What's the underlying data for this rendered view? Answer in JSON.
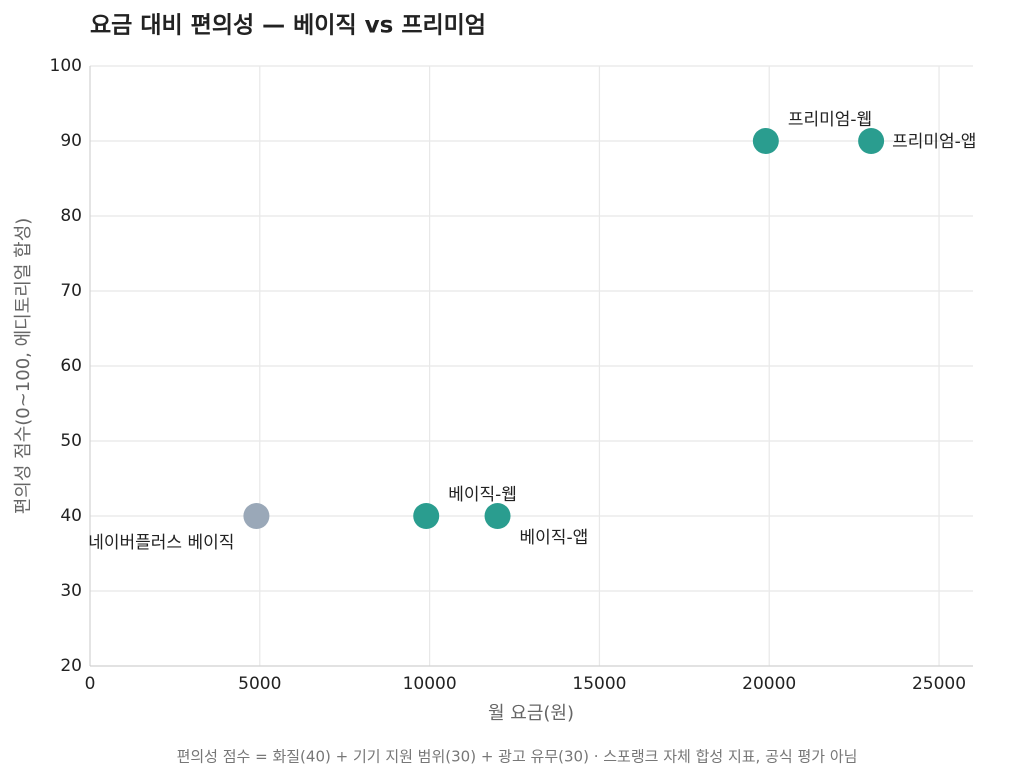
{
  "chart_data": {
    "type": "scatter",
    "title": "요금 대비 편의성 — 베이직 vs 프리미엄",
    "x_label": "월 요금(원)",
    "y_label": "편의성 점수(0~100, 에디토리얼 합성)",
    "footnote": "편의성 점수 = 화질(40) + 기기 지원 범위(30) + 광고 유무(30) · 스포랭크 자체 합성 지표, 공식 평가 아님",
    "point_labels": [
      "네이버플러스 베이직",
      "베이직-웹",
      "베이직-앱",
      "프리미엄-웹",
      "프리미엄-앱"
    ],
    "x": [
      4900,
      9900,
      12000,
      19900,
      23000
    ],
    "values": [
      40,
      40,
      40,
      90,
      90
    ],
    "colors": [
      "#9aa8b8",
      "#2a9d8f",
      "#2a9d8f",
      "#2a9d8f",
      "#2a9d8f"
    ],
    "xlim": [
      0,
      26000
    ],
    "xticks": [
      0,
      5000,
      10000,
      15000,
      20000,
      25000
    ],
    "ylim": [
      20,
      100
    ],
    "yticks": [
      20,
      30,
      40,
      50,
      60,
      70,
      80,
      90,
      100
    ],
    "grid": true
  }
}
